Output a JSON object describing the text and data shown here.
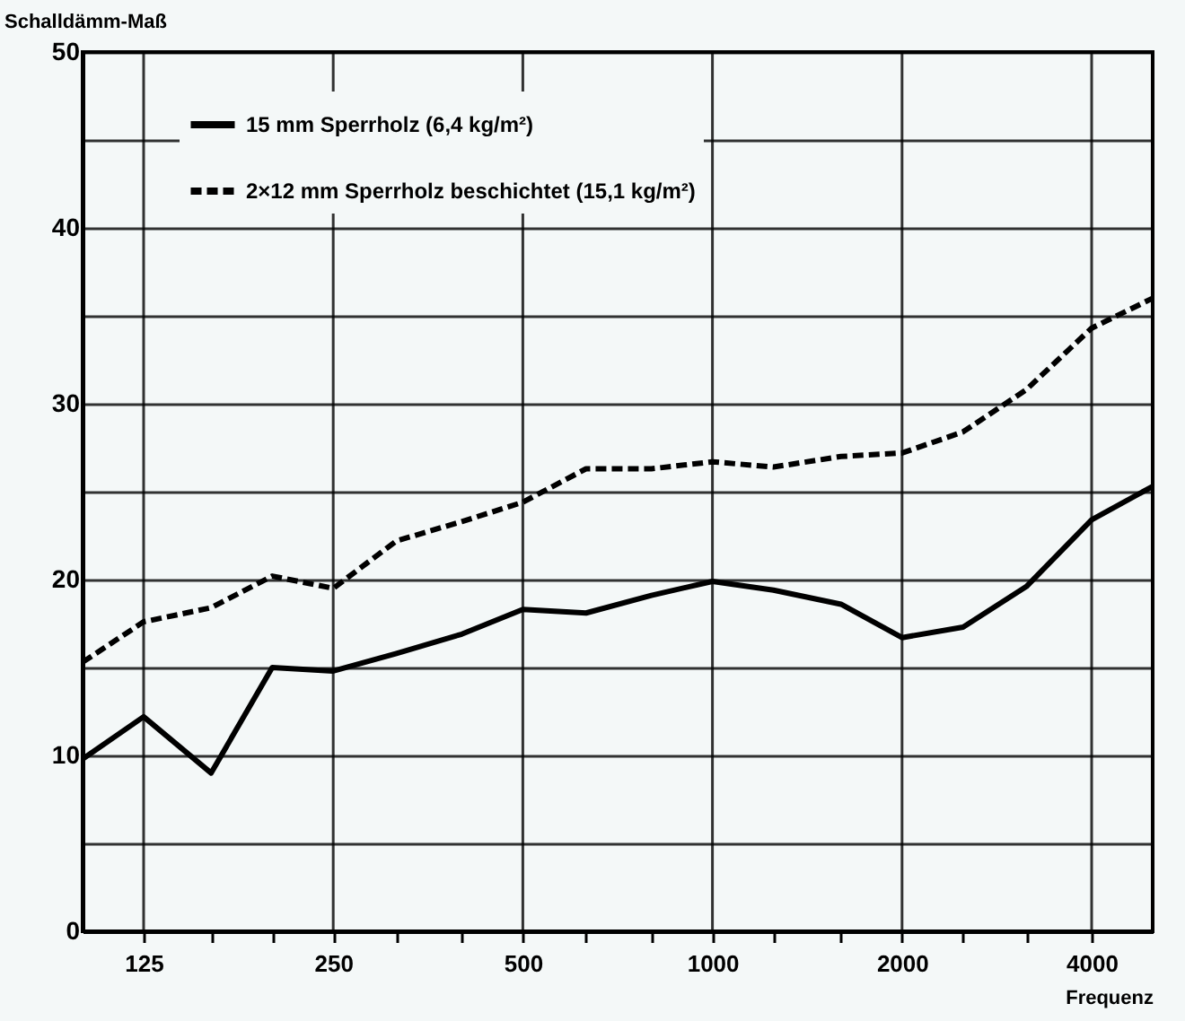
{
  "chart_data": {
    "type": "line",
    "xlabel": "Frequenz",
    "ylabel": "Schalldämm-Maß",
    "x": [
      100,
      125,
      160,
      200,
      250,
      315,
      400,
      500,
      630,
      800,
      1000,
      1250,
      1600,
      2000,
      2500,
      3150,
      4000,
      5000
    ],
    "series": [
      {
        "name": "15 mm Sperrholz (6,4 kg/m²)",
        "color": "#000000",
        "line_style": "solid",
        "values": [
          9.8,
          12.2,
          9,
          15,
          14.8,
          15.8,
          16.9,
          18.3,
          18.1,
          19.1,
          19.9,
          19.4,
          18.6,
          16.7,
          17.3,
          19.6,
          23.4,
          25.3
        ]
      },
      {
        "name": "2×12 mm Sperrholz beschichtet (15,1 kg/m²)",
        "color": "#000000",
        "line_style": "dashed",
        "values": [
          15.3,
          17.6,
          18.4,
          20.2,
          19.5,
          22.2,
          23.3,
          24.4,
          26.3,
          26.3,
          26.7,
          26.4,
          27,
          27.2,
          28.4,
          30.8,
          34.3,
          36
        ]
      }
    ],
    "log": "x",
    "xlim": [
      100,
      5000
    ],
    "xticks": [
      125,
      {
        "value": 160,
        "label": null
      },
      {
        "value": 200,
        "label": null
      },
      250,
      {
        "value": 315,
        "label": null
      },
      {
        "value": 400,
        "label": null
      },
      500,
      {
        "value": 630,
        "label": null
      },
      {
        "value": 800,
        "label": null
      },
      1000,
      {
        "value": 1250,
        "label": null
      },
      {
        "value": 1600,
        "label": null
      },
      2000,
      {
        "value": 2500,
        "label": null
      },
      {
        "value": 3150,
        "label": null
      },
      4000
    ],
    "ylim": [
      0,
      50
    ],
    "yticks": [
      0,
      {
        "value": 5,
        "label": null
      },
      10,
      {
        "value": 15,
        "label": null
      },
      20,
      {
        "value": 25,
        "label": null
      },
      30,
      {
        "value": 35,
        "label": null
      },
      40,
      {
        "value": 45,
        "label": null
      },
      50
    ],
    "grid": true,
    "legend": "top left",
    "marker": "none"
  }
}
